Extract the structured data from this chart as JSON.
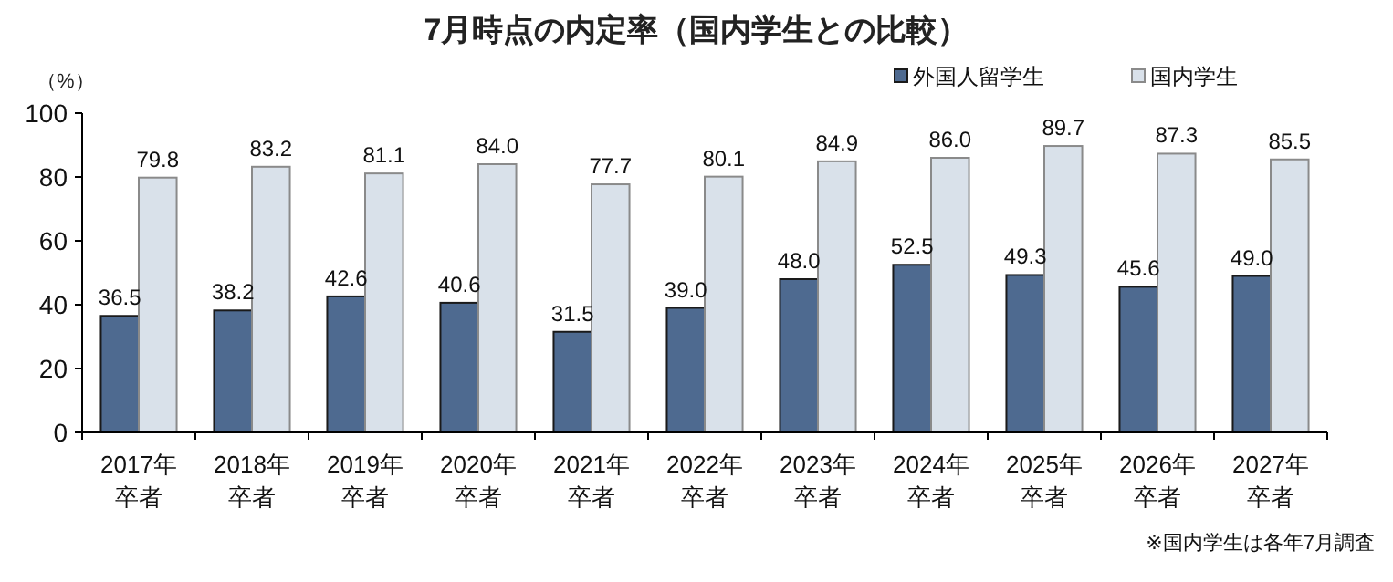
{
  "chart_data": {
    "type": "bar",
    "title": "7月時点の内定率（国内学生との比較）",
    "ylabel": "（%）",
    "categories": [
      "2017年卒者",
      "2018年卒者",
      "2019年卒者",
      "2020年卒者",
      "2021年卒者",
      "2022年卒者",
      "2023年卒者",
      "2024年卒者",
      "2025年卒者",
      "2026年卒者",
      "2027年卒者"
    ],
    "series": [
      {
        "name": "外国人留学生",
        "color": "#4e6a90",
        "values": [
          36.5,
          38.2,
          42.6,
          40.6,
          31.5,
          39.0,
          48.0,
          52.5,
          49.3,
          45.6,
          49.0
        ],
        "value_labels": [
          "36.5",
          "38.2",
          "42.6",
          "40.6",
          "31.5",
          "39.0",
          "48.0",
          "52.5",
          "49.3",
          "45.6",
          "49.0"
        ]
      },
      {
        "name": "国内学生",
        "color": "#d9e1ea",
        "values": [
          79.8,
          83.2,
          81.1,
          84.0,
          77.7,
          80.1,
          84.9,
          86.0,
          89.7,
          87.3,
          85.5
        ],
        "value_labels": [
          "79.8",
          "83.2",
          "81.1",
          "84.0",
          "77.7",
          "80.1",
          "84.9",
          "86.0",
          "89.7",
          "87.3",
          "85.5"
        ]
      }
    ],
    "ylim": [
      0,
      100
    ],
    "yticks": [
      0,
      20,
      40,
      60,
      80,
      100
    ],
    "grid": false,
    "legend": "top right",
    "annotations": [
      "※国内学生は各年7月調査"
    ]
  }
}
